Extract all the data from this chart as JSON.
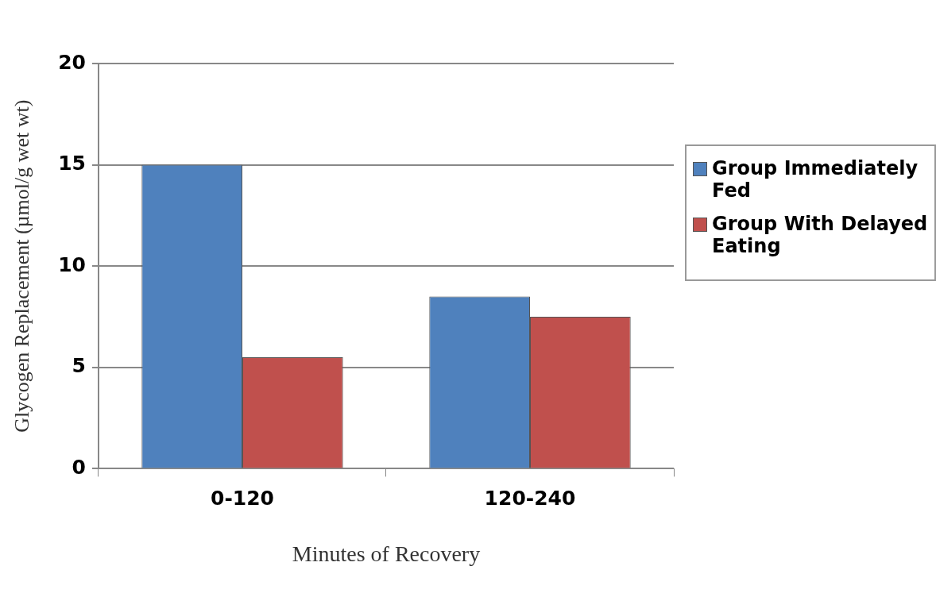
{
  "chart_data": {
    "type": "bar",
    "xlabel": "Minutes of Recovery",
    "ylabel": "Glycogen Replacement (µmol/g wet wt)",
    "categories": [
      "0-120",
      "120-240"
    ],
    "series": [
      {
        "name": "Group Immediately Fed",
        "color": "#4f81bd",
        "values": [
          15,
          8.5
        ]
      },
      {
        "name": "Group With Delayed Eating",
        "color": "#c0504d",
        "values": [
          5.5,
          7.5
        ]
      }
    ],
    "ylim": [
      0,
      20
    ],
    "yticks": [
      0,
      5,
      10,
      15,
      20
    ],
    "grid": "y",
    "legend": "right"
  }
}
